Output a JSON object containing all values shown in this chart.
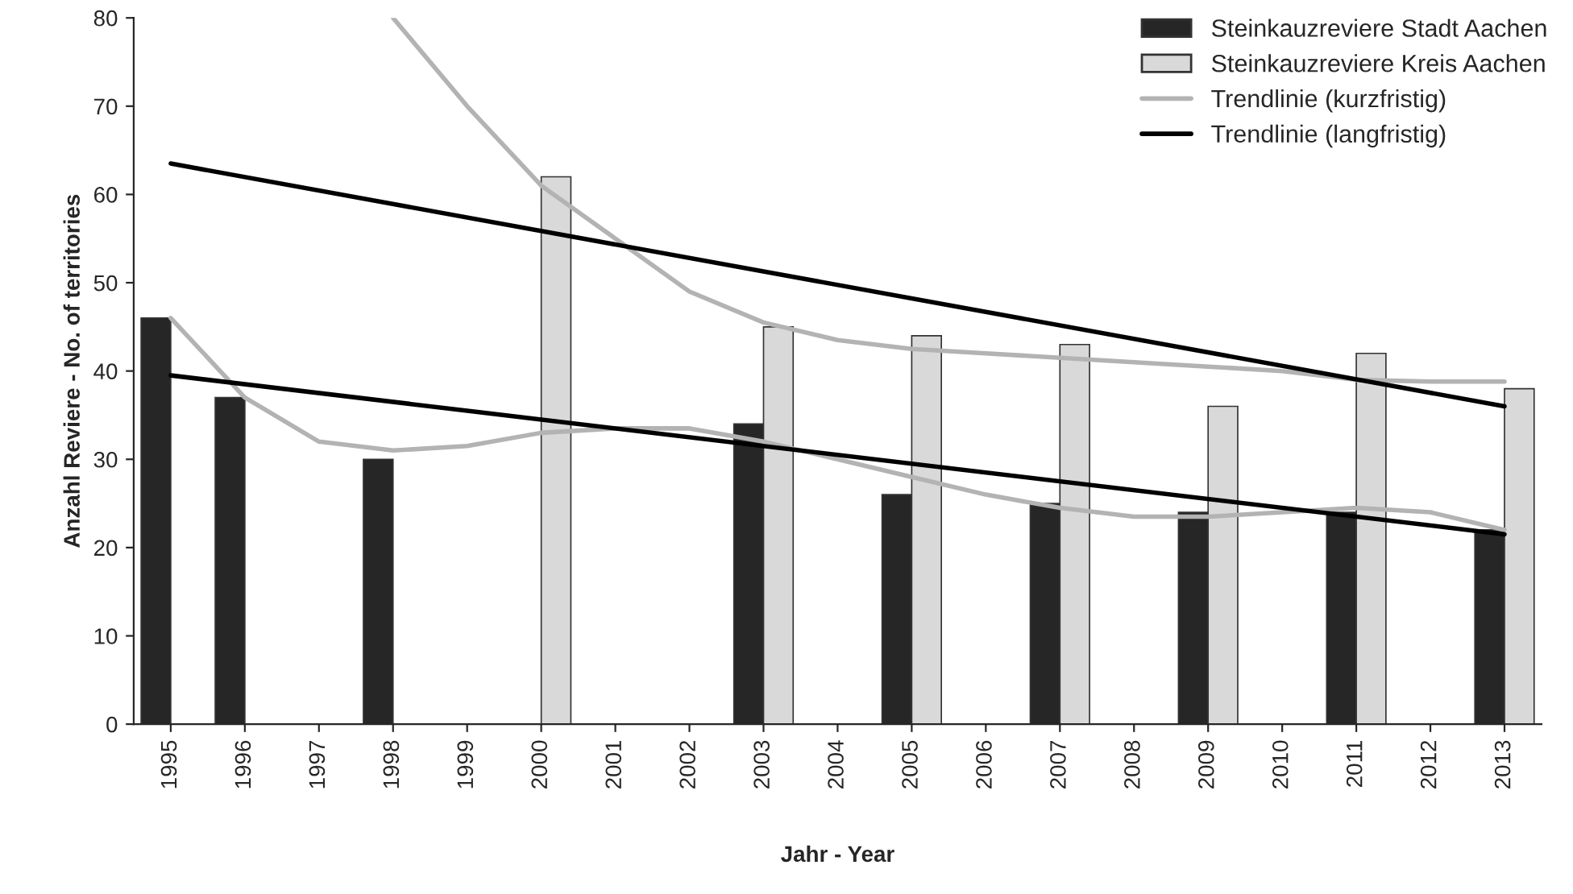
{
  "chart_data": {
    "type": "bar",
    "xlabel": "Jahr - Year",
    "ylabel": "Anzahl Reviere - No. of territories",
    "categories": [
      "1995",
      "1996",
      "1997",
      "1998",
      "1999",
      "2000",
      "2001",
      "2002",
      "2003",
      "2004",
      "2005",
      "2006",
      "2007",
      "2008",
      "2009",
      "2010",
      "2011",
      "2012",
      "2013"
    ],
    "series": [
      {
        "name": "Steinkauzreviere Stadt Aachen",
        "color": "#262626",
        "values": [
          46,
          37,
          null,
          30,
          null,
          null,
          null,
          null,
          34,
          null,
          26,
          null,
          25,
          null,
          24,
          null,
          24,
          null,
          22
        ]
      },
      {
        "name": "Steinkauzreviere Kreis Aachen",
        "color": "#d9d9d9",
        "values": [
          null,
          null,
          null,
          null,
          null,
          62,
          null,
          null,
          45,
          null,
          44,
          null,
          43,
          null,
          36,
          null,
          42,
          null,
          38
        ]
      },
      {
        "name": "Trendlinie (kurzfristig)",
        "type": "line",
        "color": "#b3b3b3",
        "values": [
          46,
          37,
          32,
          31,
          31.5,
          33,
          33.5,
          33.5,
          32,
          30,
          28,
          26,
          24.5,
          23.5,
          23.5,
          24,
          24.5,
          24,
          22
        ]
      },
      {
        "type": "line",
        "color": "#b3b3b3",
        "values": [
          null,
          null,
          null,
          80,
          70,
          61,
          55,
          49,
          45.5,
          43.5,
          42.5,
          42,
          41.5,
          41,
          40.5,
          40,
          39,
          38.8,
          38.8
        ]
      },
      {
        "name": "Trendlinie (langfristig)",
        "type": "line",
        "color": "#000000",
        "values": [
          39.5,
          null,
          null,
          null,
          null,
          null,
          null,
          null,
          null,
          null,
          null,
          null,
          null,
          null,
          null,
          null,
          null,
          null,
          21.5
        ]
      },
      {
        "type": "line",
        "color": "#000000",
        "values": [
          63.5,
          null,
          null,
          null,
          null,
          null,
          null,
          null,
          null,
          null,
          null,
          null,
          null,
          null,
          null,
          null,
          null,
          null,
          36
        ]
      }
    ],
    "ylim": [
      0,
      80
    ],
    "yticks": [
      0,
      10,
      20,
      30,
      40,
      50,
      60,
      70,
      80
    ],
    "legend": "top right",
    "line_style": "solid"
  }
}
